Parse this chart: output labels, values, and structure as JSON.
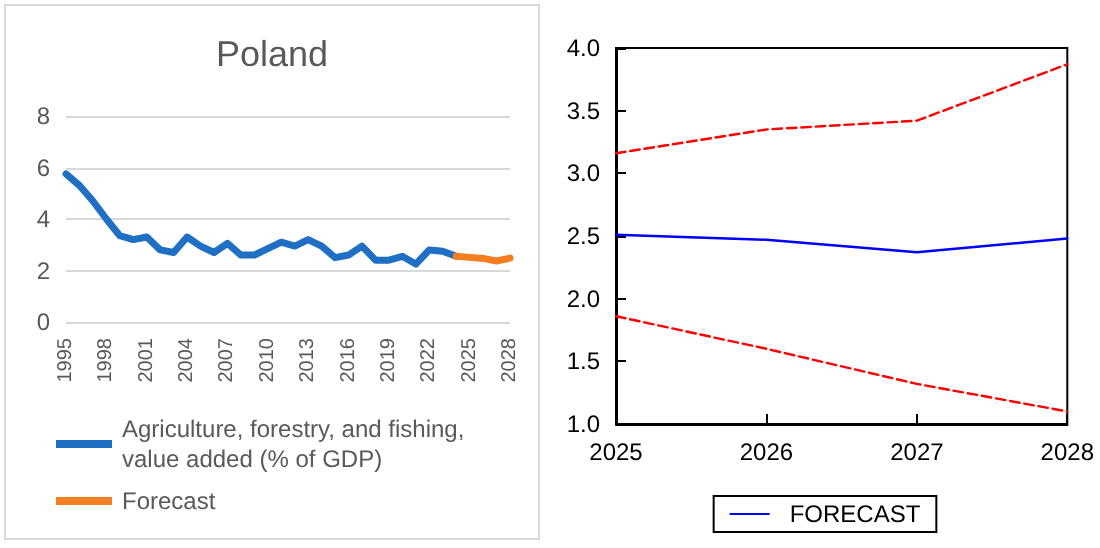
{
  "chart_data": [
    {
      "type": "line",
      "title": "Poland",
      "categories": [
        "1995",
        null,
        null,
        "1998",
        null,
        null,
        "2001",
        null,
        null,
        "2004",
        null,
        null,
        "2007",
        null,
        null,
        "2010",
        null,
        null,
        "2013",
        null,
        null,
        "2016",
        null,
        null,
        "2019",
        null,
        null,
        "2022",
        null,
        null,
        "2025",
        null,
        null,
        "2028"
      ],
      "series": [
        {
          "name": "Agriculture, forestry, and fishing, value added (% of GDP)",
          "color": "#1f6fc5",
          "values": [
            5.75,
            5.3,
            4.7,
            4.0,
            3.35,
            3.2,
            3.3,
            2.8,
            2.7,
            3.3,
            2.95,
            2.7,
            3.05,
            2.6,
            2.6,
            2.85,
            3.1,
            2.95,
            3.2,
            2.95,
            2.5,
            2.6,
            2.95,
            2.4,
            2.4,
            2.55,
            2.25,
            2.8,
            2.75,
            2.55,
            null,
            null,
            null,
            null
          ]
        },
        {
          "name": "Forecast",
          "color": "#f47e20",
          "values": [
            null,
            null,
            null,
            null,
            null,
            null,
            null,
            null,
            null,
            null,
            null,
            null,
            null,
            null,
            null,
            null,
            null,
            null,
            null,
            null,
            null,
            null,
            null,
            null,
            null,
            null,
            null,
            null,
            null,
            2.55,
            2.51,
            2.47,
            2.37,
            2.48
          ]
        }
      ],
      "ylim": [
        0,
        8
      ],
      "yticks": [
        0,
        2,
        4,
        6,
        8
      ],
      "grid": "y",
      "legend": "bottom",
      "marker": "none"
    },
    {
      "type": "line",
      "x": [
        2025,
        2026,
        2027,
        2028
      ],
      "series": [
        {
          "name": "FORECAST",
          "color": "#0000ff",
          "values": [
            2.51,
            2.47,
            2.37,
            2.48
          ]
        },
        {
          "color": "#ff0000",
          "values": [
            3.16,
            3.35,
            3.42,
            3.87
          ],
          "line_style": "dashed"
        },
        {
          "color": "#ff0000",
          "values": [
            1.86,
            1.6,
            1.32,
            1.1
          ],
          "line_style": "dashed"
        }
      ],
      "xlim": [
        2025,
        2028
      ],
      "xticks": [
        2025,
        2026,
        2027,
        2028
      ],
      "ylim": [
        1,
        4
      ],
      "yticks": [
        {
          "value": 1,
          "label": "1.0"
        },
        1.5,
        {
          "value": 2,
          "label": "2.0"
        },
        2.5,
        {
          "value": 3,
          "label": "3.0"
        },
        3.5,
        {
          "value": 4,
          "label": "4.0"
        }
      ],
      "grid": false,
      "legend": "bottom",
      "marker": "none"
    }
  ]
}
